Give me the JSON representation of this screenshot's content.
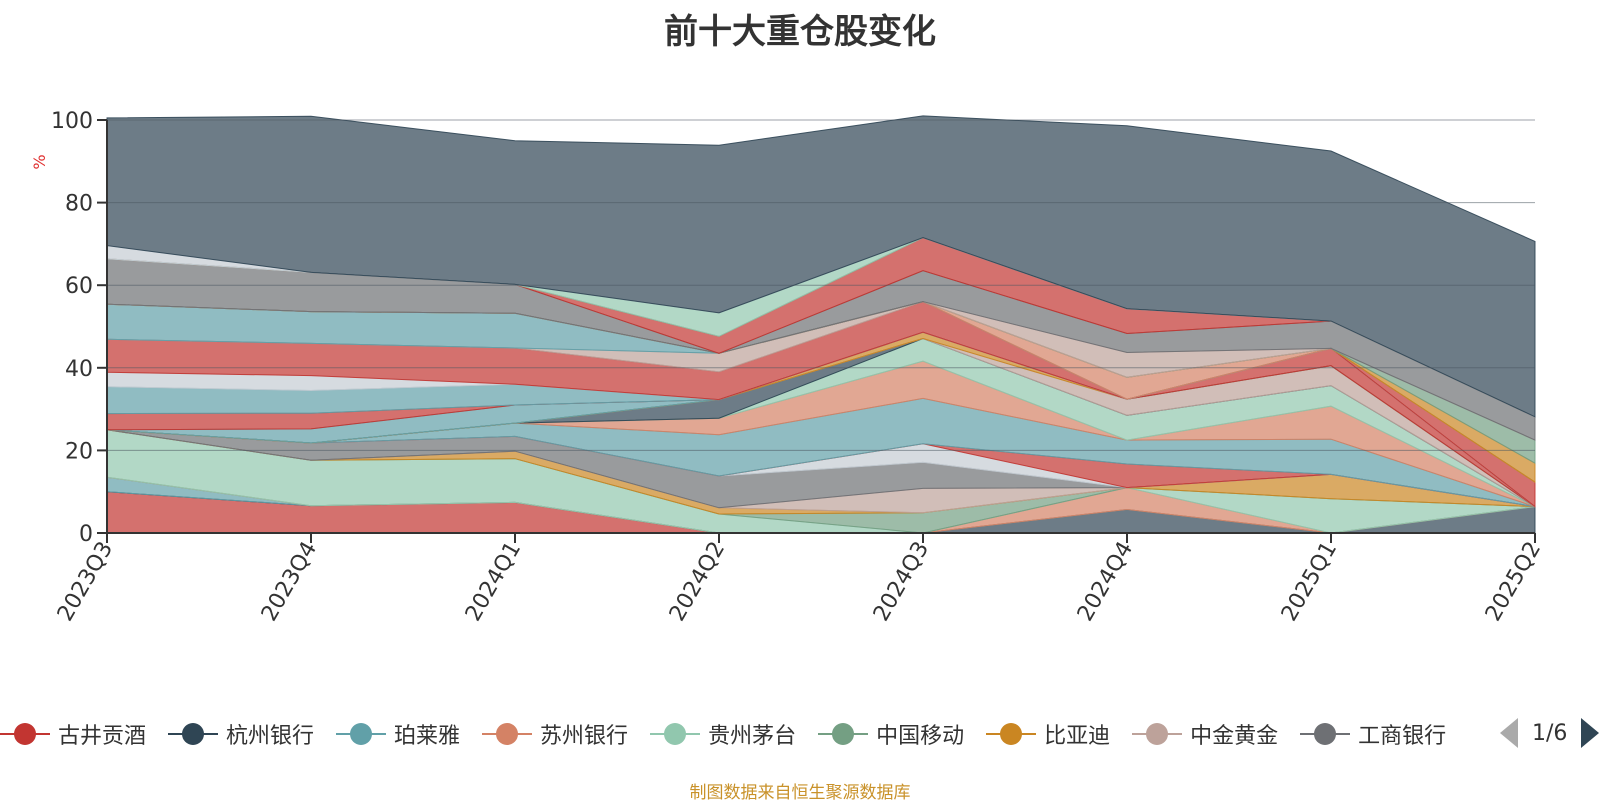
{
  "chart_data": {
    "type": "area",
    "title": "前十大重仓股变化",
    "ylabel": "%",
    "xlabel": "",
    "ylim": [
      0,
      100
    ],
    "yticks": [
      0,
      20,
      40,
      60,
      80,
      100
    ],
    "grid": true,
    "legend_position": "bottom",
    "categories": [
      "2023Q3",
      "2023Q4",
      "2024Q1",
      "2024Q2",
      "2024Q3",
      "2024Q4",
      "2025Q1",
      "2025Q2"
    ],
    "series": [
      {
        "name": "古井贡酒",
        "color": "#c23531",
        "values": [
          10,
          6.6,
          7.4,
          0,
          0,
          0,
          0,
          0
        ]
      },
      {
        "name": "杭州银行",
        "color": "#2f4554",
        "values": [
          0,
          0,
          0,
          0,
          0,
          5.7,
          0,
          6.4
        ]
      },
      {
        "name": "珀莱雅",
        "color": "#61a0a8",
        "values": [
          3.5,
          0,
          0,
          0,
          0,
          0,
          0,
          0
        ]
      },
      {
        "name": "苏州银行",
        "color": "#d48265",
        "values": [
          0,
          0,
          0,
          0,
          0,
          5.3,
          0,
          0
        ]
      },
      {
        "name": "贵州茅台",
        "color": "#91c7ae",
        "values": [
          11.5,
          11,
          10.6,
          4.6,
          0,
          0,
          8.3,
          0
        ]
      },
      {
        "name": "中国移动",
        "color": "#749f83",
        "values": [
          0,
          0,
          0,
          0,
          4.9,
          0,
          0,
          0
        ]
      },
      {
        "name": "比亚迪",
        "color": "#ca8622",
        "values": [
          0,
          0,
          1.8,
          1.5,
          0,
          0,
          5.9,
          0
        ]
      },
      {
        "name": "中金黄金",
        "color": "#bda29a",
        "values": [
          0,
          0,
          0,
          0,
          5.9,
          0,
          0,
          0
        ]
      },
      {
        "name": "工商银行",
        "color": "#6e7074",
        "values": [
          0,
          4.2,
          3.6,
          7.7,
          6.3,
          0,
          0,
          0
        ]
      },
      {
        "name": "",
        "color": "#c4ccd3",
        "values": [
          0,
          0,
          0,
          0,
          4.5,
          0,
          0,
          0
        ]
      },
      {
        "name": "",
        "color": "#c23531",
        "values": [
          0,
          0,
          0,
          0,
          0,
          5.7,
          0,
          0
        ]
      },
      {
        "name": "",
        "color": "#61a0a8",
        "values": [
          0,
          0,
          3.2,
          10,
          11,
          5.8,
          8.5,
          0
        ]
      },
      {
        "name": "",
        "color": "#d48265",
        "values": [
          0,
          0,
          0,
          4,
          9,
          0,
          8,
          0
        ]
      },
      {
        "name": "",
        "color": "#91c7ae",
        "values": [
          0,
          0,
          0,
          0,
          5.5,
          6,
          5,
          0
        ]
      },
      {
        "name": "",
        "color": "#2f4554",
        "values": [
          0,
          0,
          0,
          4.5,
          0,
          0,
          0,
          0
        ]
      },
      {
        "name": "",
        "color": "#bda29a",
        "values": [
          0,
          0,
          0,
          0,
          0,
          3.9,
          4.8,
          0
        ]
      },
      {
        "name": "",
        "color": "#ca8622",
        "values": [
          0,
          0,
          0,
          0,
          1.5,
          0,
          0,
          0
        ]
      },
      {
        "name": "",
        "color": "#61a0a8",
        "values": [
          0,
          3.4,
          4.4,
          0,
          0,
          0,
          0,
          0
        ]
      },
      {
        "name": "",
        "color": "#c23531",
        "values": [
          3.9,
          3.8,
          0,
          0,
          0,
          0,
          4.2,
          0
        ]
      },
      {
        "name": "",
        "color": "#61a0a8",
        "values": [
          6.5,
          5.5,
          5,
          0,
          0,
          0,
          0,
          0
        ]
      },
      {
        "name": "",
        "color": "#c4ccd3",
        "values": [
          3.5,
          3.6,
          0,
          0,
          0,
          0,
          0,
          0
        ]
      },
      {
        "name": "",
        "color": "#c23531",
        "values": [
          8,
          7.8,
          8.8,
          6.7,
          7.4,
          0,
          0,
          5.9
        ]
      },
      {
        "name": "",
        "color": "#bda29a",
        "values": [
          0,
          0,
          0,
          4.5,
          0,
          0,
          0,
          0
        ]
      },
      {
        "name": "",
        "color": "#61a0a8",
        "values": [
          8.5,
          7.7,
          8.4,
          0,
          0,
          0,
          0,
          0
        ]
      },
      {
        "name": "",
        "color": "#d48265",
        "values": [
          0,
          0,
          0,
          0,
          0,
          5.3,
          0,
          0
        ]
      },
      {
        "name": "",
        "color": "#ca8622",
        "values": [
          0,
          0,
          0,
          0,
          0,
          0,
          0,
          4.6
        ]
      },
      {
        "name": "",
        "color": "#749f83",
        "values": [
          0,
          0,
          0,
          0,
          0,
          0,
          0,
          5.6
        ]
      },
      {
        "name": "",
        "color": "#bda29a",
        "values": [
          0,
          0,
          0,
          0,
          0,
          6,
          0,
          0
        ]
      },
      {
        "name": "",
        "color": "#6e7074",
        "values": [
          11,
          9.5,
          7,
          0,
          7.5,
          4.6,
          6.6,
          5.6
        ]
      },
      {
        "name": "",
        "color": "#c23531",
        "values": [
          0,
          0,
          0,
          4.1,
          8,
          6,
          0,
          0
        ]
      },
      {
        "name": "",
        "color": "#91c7ae",
        "values": [
          0,
          0,
          0,
          5.7,
          0,
          0,
          0,
          0
        ]
      },
      {
        "name": "",
        "color": "#c4ccd3",
        "values": [
          3.2,
          0,
          0,
          0,
          0,
          0,
          0,
          0
        ]
      },
      {
        "name": "",
        "color": "#2f4554",
        "values": [
          30.9,
          37.8,
          34.8,
          40.6,
          29.5,
          44.3,
          41.2,
          42.5
        ]
      }
    ]
  },
  "legend": {
    "items": [
      {
        "label": "古井贡酒",
        "color": "#c23531"
      },
      {
        "label": "杭州银行",
        "color": "#2f4554"
      },
      {
        "label": "珀莱雅",
        "color": "#61a0a8"
      },
      {
        "label": "苏州银行",
        "color": "#d48265"
      },
      {
        "label": "贵州茅台",
        "color": "#91c7ae"
      },
      {
        "label": "中国移动",
        "color": "#749f83"
      },
      {
        "label": "比亚迪",
        "color": "#ca8622"
      },
      {
        "label": "中金黄金",
        "color": "#bda29a"
      },
      {
        "label": "工商银行",
        "color": "#6e7074"
      }
    ],
    "page_indicator": "1/6"
  },
  "source_note": "制图数据来自恒生聚源数据库"
}
